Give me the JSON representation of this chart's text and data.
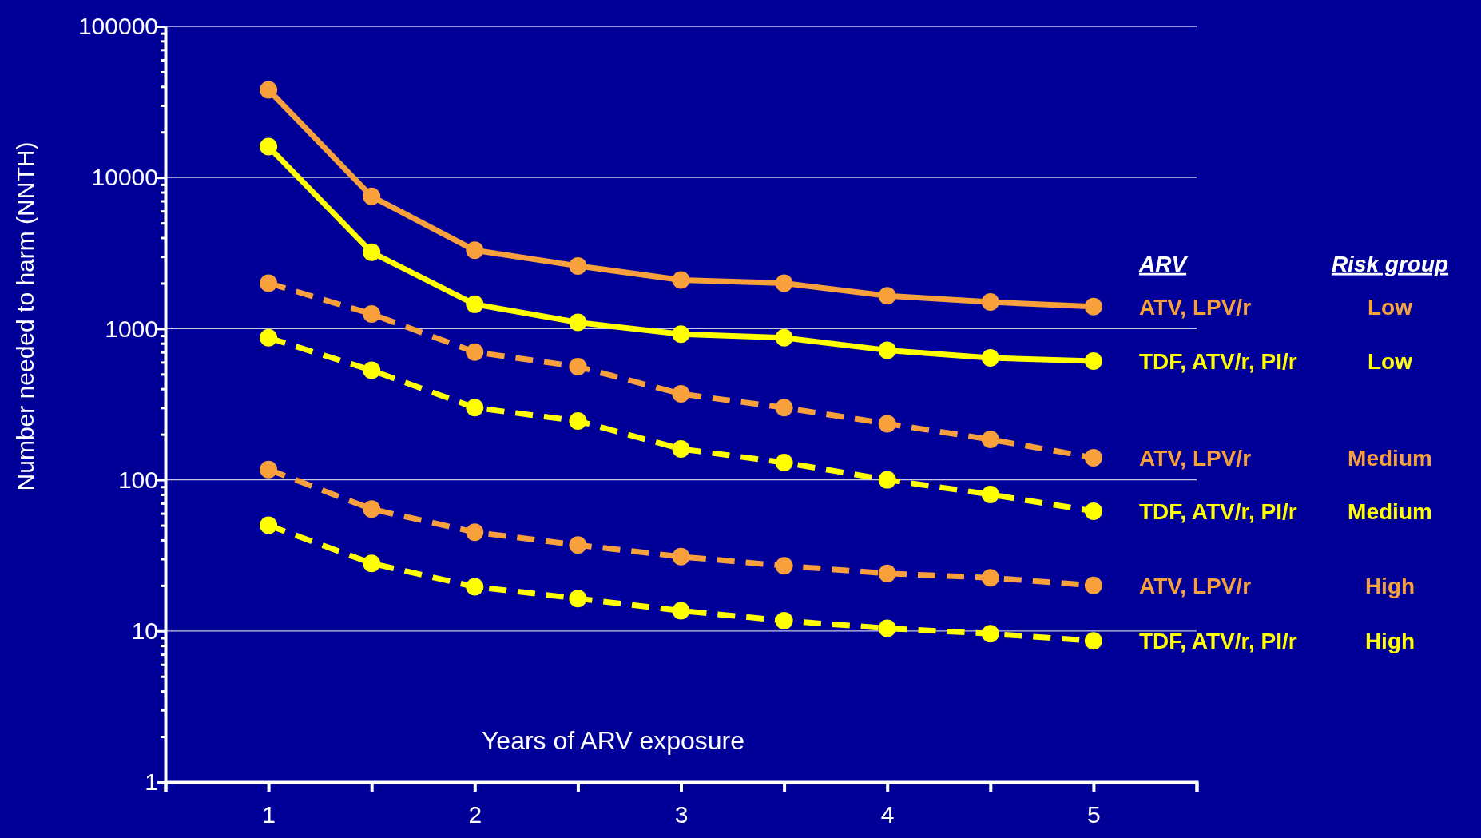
{
  "chart_data": {
    "type": "line",
    "xlabel": "Years of ARV exposure",
    "ylabel": "Number needed to harm (NNTH)",
    "legend_title": "ARV",
    "log": "y",
    "grid": "y",
    "legend": "right",
    "marker": "circle",
    "x": [
      1,
      1.5,
      2,
      2.5,
      3,
      3.5,
      4,
      4.5,
      5
    ],
    "xlim": [
      0.5,
      5.5
    ],
    "xticks": [
      {
        "value": 0.5,
        "label": null
      },
      1,
      {
        "value": 1.5,
        "label": null
      },
      2,
      {
        "value": 2.5,
        "label": null
      },
      3,
      {
        "value": 3.5,
        "label": null
      },
      4,
      {
        "value": 4.5,
        "label": null
      },
      5,
      {
        "value": 5.5,
        "label": null
      }
    ],
    "ylim": [
      1,
      100000
    ],
    "yticks": [
      1,
      {
        "value": 2,
        "label": null
      },
      {
        "value": 3,
        "label": null
      },
      {
        "value": 4,
        "label": null
      },
      {
        "value": 5,
        "label": null
      },
      {
        "value": 6,
        "label": null
      },
      {
        "value": 7,
        "label": null
      },
      {
        "value": 8,
        "label": null
      },
      {
        "value": 9,
        "label": null
      },
      10,
      {
        "value": 20,
        "label": null
      },
      {
        "value": 30,
        "label": null
      },
      {
        "value": 40,
        "label": null
      },
      {
        "value": 50,
        "label": null
      },
      {
        "value": 60,
        "label": null
      },
      {
        "value": 70,
        "label": null
      },
      {
        "value": 80,
        "label": null
      },
      {
        "value": 90,
        "label": null
      },
      100,
      {
        "value": 200,
        "label": null
      },
      {
        "value": 300,
        "label": null
      },
      {
        "value": 400,
        "label": null
      },
      {
        "value": 500,
        "label": null
      },
      {
        "value": 600,
        "label": null
      },
      {
        "value": 700,
        "label": null
      },
      {
        "value": 800,
        "label": null
      },
      {
        "value": 900,
        "label": null
      },
      1000,
      {
        "value": 2000,
        "label": null
      },
      {
        "value": 3000,
        "label": null
      },
      {
        "value": 4000,
        "label": null
      },
      {
        "value": 5000,
        "label": null
      },
      {
        "value": 6000,
        "label": null
      },
      {
        "value": 7000,
        "label": null
      },
      {
        "value": 8000,
        "label": null
      },
      {
        "value": 9000,
        "label": null
      },
      10000,
      {
        "value": 20000,
        "label": null
      },
      {
        "value": 30000,
        "label": null
      },
      {
        "value": 40000,
        "label": null
      },
      {
        "value": 50000,
        "label": null
      },
      {
        "value": 60000,
        "label": null
      },
      {
        "value": 70000,
        "label": null
      },
      {
        "value": 80000,
        "label": null
      },
      {
        "value": 90000,
        "label": null
      },
      100000
    ],
    "series": [
      {
        "name": "ATV, LPV/r",
        "color": "#f7a03c",
        "line_style": "solid",
        "values": [
          38000,
          7500,
          3300,
          2600,
          2100,
          2000,
          1650,
          1500,
          1400
        ]
      },
      {
        "name": "TDF, ATV/r, PI/r",
        "color": "#ffff00",
        "line_style": "solid",
        "values": [
          16000,
          3200,
          1450,
          1100,
          920,
          870,
          720,
          640,
          610
        ]
      },
      {
        "name": "ATV, LPV/r",
        "color": "#f7a03c",
        "line_style": "dashed",
        "values": [
          2000,
          1250,
          700,
          560,
          370,
          300,
          235,
          185,
          140
        ]
      },
      {
        "name": "TDF, ATV/r, PI/r",
        "color": "#ffff00",
        "line_style": "dashed",
        "values": [
          870,
          530,
          300,
          245,
          160,
          130,
          100,
          80,
          62
        ]
      },
      {
        "name": "ATV, LPV/r",
        "color": "#f7a03c",
        "line_style": "dashed",
        "values": [
          117,
          64,
          45,
          37,
          31,
          27,
          24,
          22.5,
          20
        ]
      },
      {
        "name": "TDF, ATV/r, PI/r",
        "color": "#ffff00",
        "line_style": "dashed",
        "values": [
          50,
          28,
          19.6,
          16.4,
          13.6,
          11.7,
          10.4,
          9.6,
          8.6
        ]
      }
    ],
    "annotations": [
      "Risk group",
      "Low",
      "Low",
      "Medium",
      "Medium",
      "High",
      "High"
    ]
  }
}
